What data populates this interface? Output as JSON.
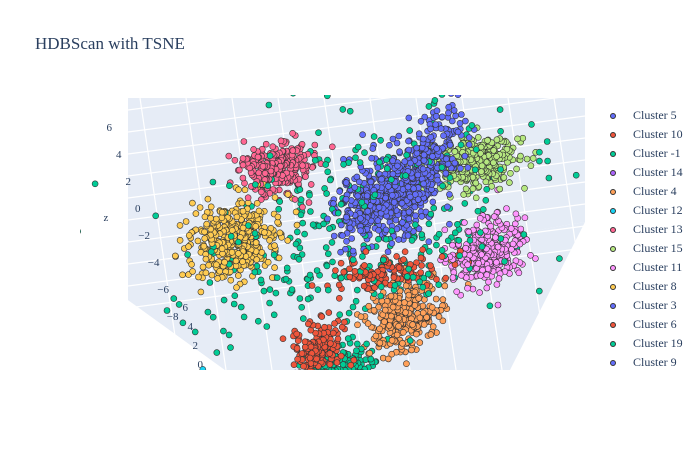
{
  "chart_data": {
    "type": "scatter",
    "title": "HDBScan with TSNE",
    "axes": {
      "z": {
        "label": "z",
        "ticks": [
          "6",
          "4",
          "2",
          "0",
          "−2",
          "−4",
          "−6",
          "−8"
        ]
      },
      "y": {
        "ticks": [
          "6",
          "4",
          "2",
          "0"
        ]
      }
    },
    "grid": true,
    "legend_position": "right",
    "series": [
      {
        "name": "Cluster 5",
        "color": "#636efa",
        "center": [
          -2.0,
          3.6,
          1.0
        ],
        "spread": [
          1.2,
          3.5,
          1.5
        ],
        "points": 330
      },
      {
        "name": "Cluster 10",
        "color": "#ef553b",
        "center": [
          -1.2,
          0.2,
          -2.0
        ],
        "spread": [
          2.2,
          0.8,
          0.6
        ],
        "points": 120
      },
      {
        "name": "Cluster -1",
        "color": "#00cc96",
        "center": [
          0.0,
          0.0,
          0.0
        ],
        "spread": [
          6.5,
          6.5,
          3.5
        ],
        "points": 380
      },
      {
        "name": "Cluster 14",
        "color": "#ab63fa",
        "center": [
          3.4,
          -4.6,
          -6.0
        ],
        "spread": [
          0.8,
          0.6,
          0.7
        ],
        "points": 120
      },
      {
        "name": "Cluster 4",
        "color": "#ffa15a",
        "center": [
          -3.0,
          -4.2,
          -2.0
        ],
        "spread": [
          1.4,
          2.2,
          1.2
        ],
        "points": 300
      },
      {
        "name": "Cluster 12",
        "color": "#19d3f3",
        "center": [
          5.6,
          -3.6,
          -5.0
        ],
        "spread": [
          1.1,
          0.8,
          0.7
        ],
        "points": 300
      },
      {
        "name": "Cluster 13",
        "color": "#ff6692",
        "center": [
          3.5,
          1.2,
          3.0
        ],
        "spread": [
          1.4,
          0.8,
          1.0
        ],
        "points": 260
      },
      {
        "name": "Cluster 15",
        "color": "#b6e880",
        "center": [
          -4.5,
          2.2,
          1.5
        ],
        "spread": [
          1.5,
          0.8,
          1.0
        ],
        "points": 300
      },
      {
        "name": "Cluster 11",
        "color": "#ff97ff",
        "center": [
          -5.5,
          0.0,
          -1.5
        ],
        "spread": [
          1.4,
          1.2,
          1.3
        ],
        "points": 300
      },
      {
        "name": "Cluster 8",
        "color": "#fecb52",
        "center": [
          5.0,
          0.0,
          0.5
        ],
        "spread": [
          1.6,
          1.3,
          1.6
        ],
        "points": 420
      },
      {
        "name": "Cluster 3",
        "color": "#636efa",
        "center": [
          2.0,
          -5.6,
          -6.0
        ],
        "spread": [
          0.9,
          0.6,
          0.8
        ],
        "points": 140
      },
      {
        "name": "Cluster 6",
        "color": "#ef553b",
        "center": [
          1.0,
          -2.2,
          -4.0
        ],
        "spread": [
          0.9,
          0.7,
          1.2
        ],
        "points": 160
      },
      {
        "name": "Cluster 19",
        "color": "#00cc96",
        "center": [
          -0.4,
          -4.6,
          -4.0
        ],
        "spread": [
          1.4,
          0.8,
          1.0
        ],
        "points": 260
      },
      {
        "name": "Cluster 9",
        "color": "#636efa",
        "center": [
          -0.5,
          1.8,
          0.5
        ],
        "spread": [
          1.6,
          1.5,
          1.5
        ],
        "points": 400
      }
    ]
  }
}
